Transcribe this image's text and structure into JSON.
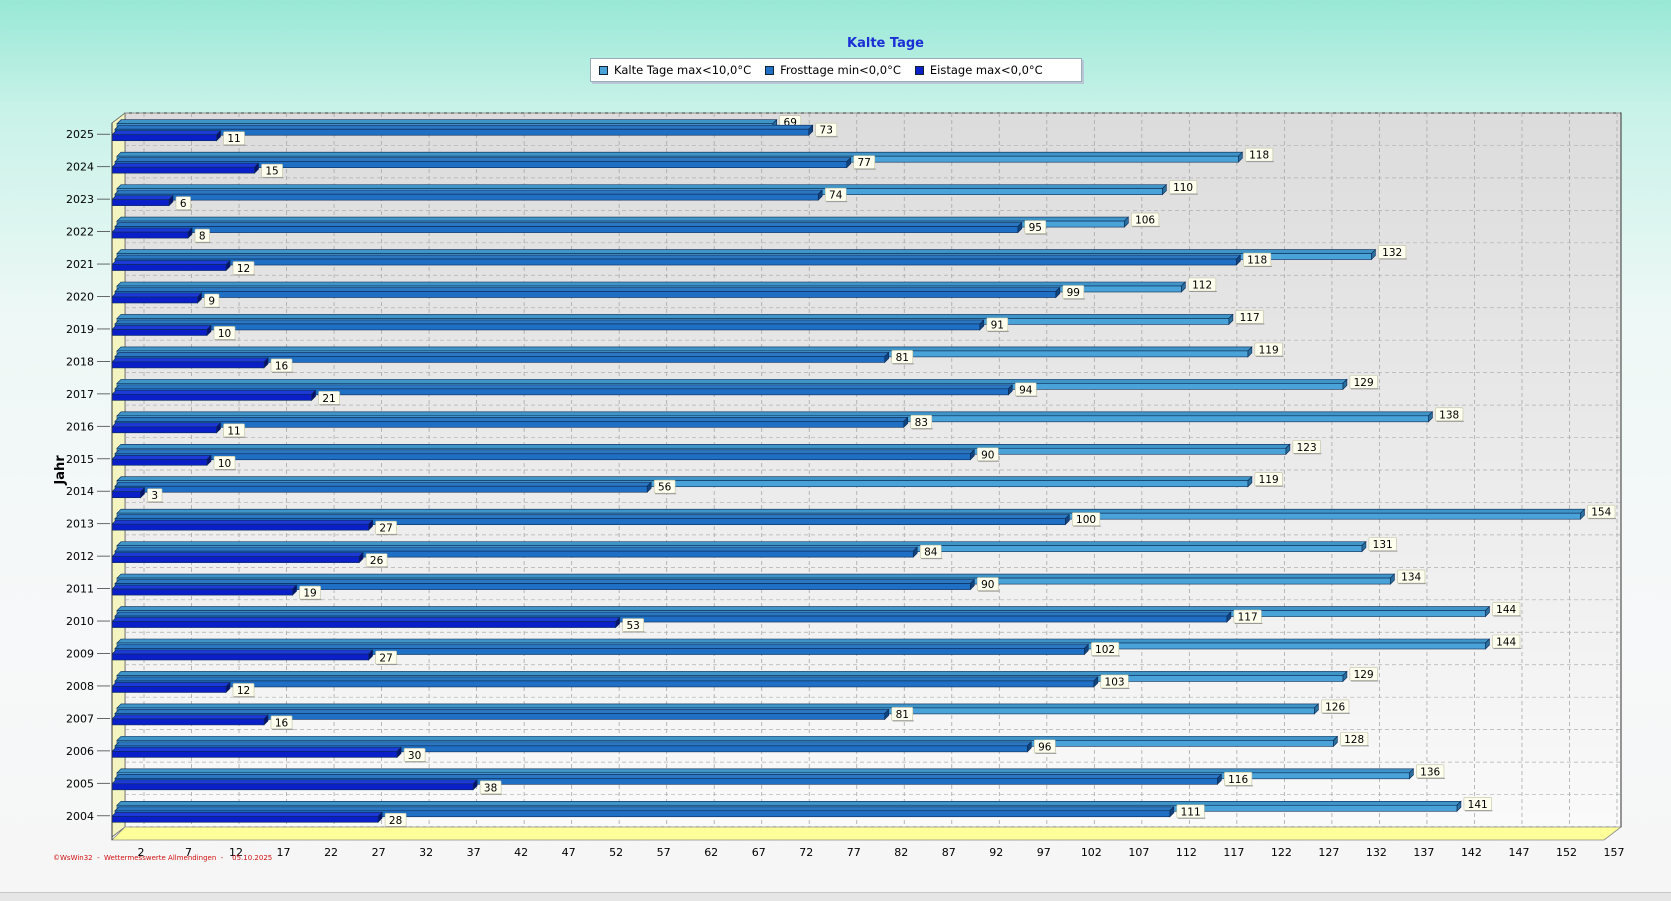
{
  "chart_data": {
    "type": "bar",
    "orientation": "horizontal",
    "title": "Kalte Tage",
    "ylabel": "Jahr",
    "xlabel": "",
    "categories": [
      "2025",
      "2024",
      "2023",
      "2022",
      "2021",
      "2020",
      "2019",
      "2018",
      "2017",
      "2016",
      "2015",
      "2014",
      "2013",
      "2012",
      "2011",
      "2010",
      "2009",
      "2008",
      "2007",
      "2006",
      "2005",
      "2004"
    ],
    "series": [
      {
        "name": "Kalte Tage max<10,0°C",
        "color": "#4aa3d8",
        "values": [
          69,
          118,
          110,
          106,
          132,
          112,
          117,
          119,
          129,
          138,
          123,
          119,
          154,
          131,
          134,
          144,
          144,
          129,
          126,
          128,
          136,
          141
        ]
      },
      {
        "name": "Frosttage min<0,0°C",
        "color": "#1f6fc4",
        "values": [
          73,
          77,
          74,
          95,
          118,
          99,
          91,
          81,
          94,
          83,
          90,
          56,
          100,
          84,
          90,
          117,
          102,
          103,
          81,
          96,
          116,
          111
        ]
      },
      {
        "name": "Eistage max<0,0°C",
        "color": "#0a1fc8",
        "values": [
          11,
          15,
          6,
          8,
          12,
          9,
          10,
          16,
          21,
          11,
          10,
          3,
          27,
          26,
          19,
          53,
          27,
          12,
          16,
          30,
          38,
          28
        ]
      }
    ],
    "xticks": [
      2,
      7,
      12,
      17,
      22,
      27,
      32,
      37,
      42,
      47,
      52,
      57,
      62,
      67,
      72,
      77,
      82,
      87,
      92,
      97,
      102,
      107,
      112,
      117,
      122,
      127,
      132,
      137,
      142,
      147,
      152,
      157
    ],
    "xlim": [
      0,
      157
    ],
    "grid": true,
    "legend_position": "top-center"
  },
  "footer": "©WsWin32  -  Wettermesswerte Allmendingen  -    05.10.2025"
}
